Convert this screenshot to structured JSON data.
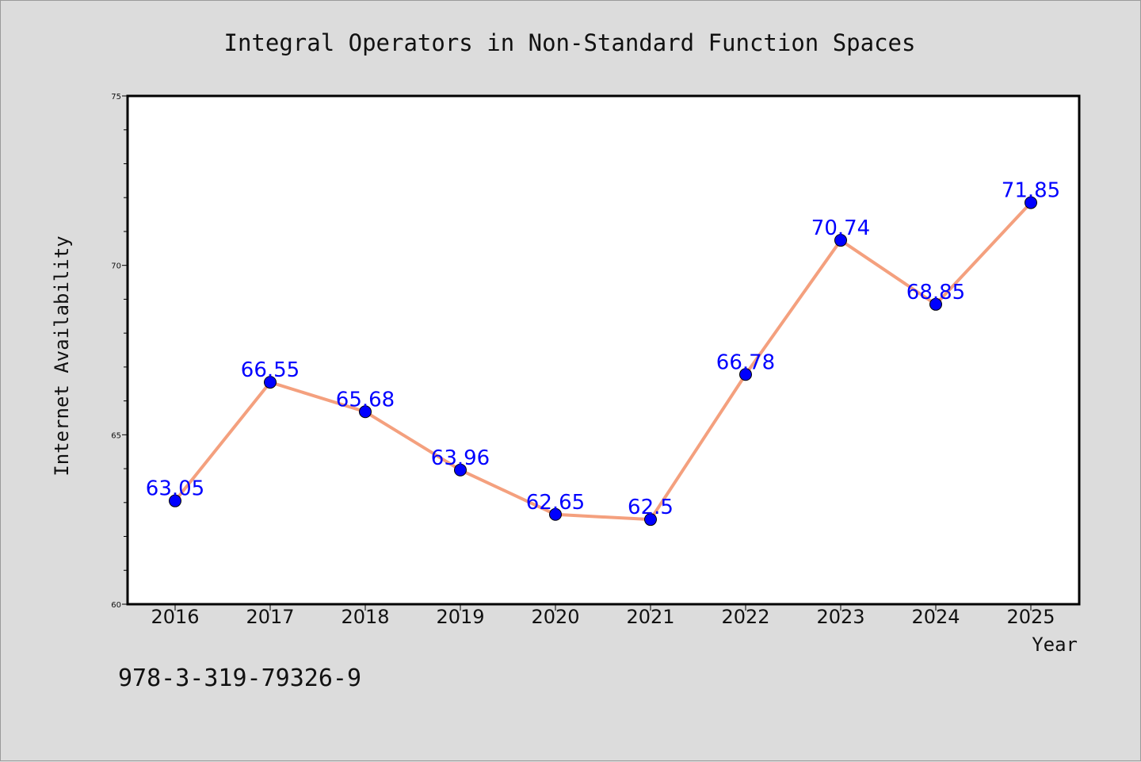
{
  "chart_data": {
    "type": "line",
    "title": "Integral Operators in Non-Standard Function Spaces",
    "xlabel": "Year",
    "ylabel": "Internet Availability",
    "categories": [
      "2016",
      "2017",
      "2018",
      "2019",
      "2020",
      "2021",
      "2022",
      "2023",
      "2024",
      "2025"
    ],
    "series": [
      {
        "values": [
          63.05,
          66.55,
          65.68,
          63.96,
          62.65,
          62.5,
          66.78,
          70.74,
          68.85,
          71.85
        ],
        "data_labels": [
          "63.05",
          "66.55",
          "65.68",
          "63.96",
          "62.65",
          "62.5",
          "66.78",
          "70.74",
          "68.85",
          "71.85"
        ],
        "line_color": "#f4a07e",
        "marker_color": "#0000ff"
      }
    ],
    "ylim": [
      60,
      75
    ],
    "yticks": [
      60,
      65,
      70,
      75
    ],
    "ytick_labels": [
      "60",
      "65",
      "70",
      "75"
    ],
    "grid": false,
    "legend": "none"
  },
  "footer": {
    "isbn": "978-3-319-79326-9"
  },
  "colors": {
    "background": "#dcdcdc",
    "plot_background": "#ffffff",
    "label_color": "#0000ff"
  }
}
